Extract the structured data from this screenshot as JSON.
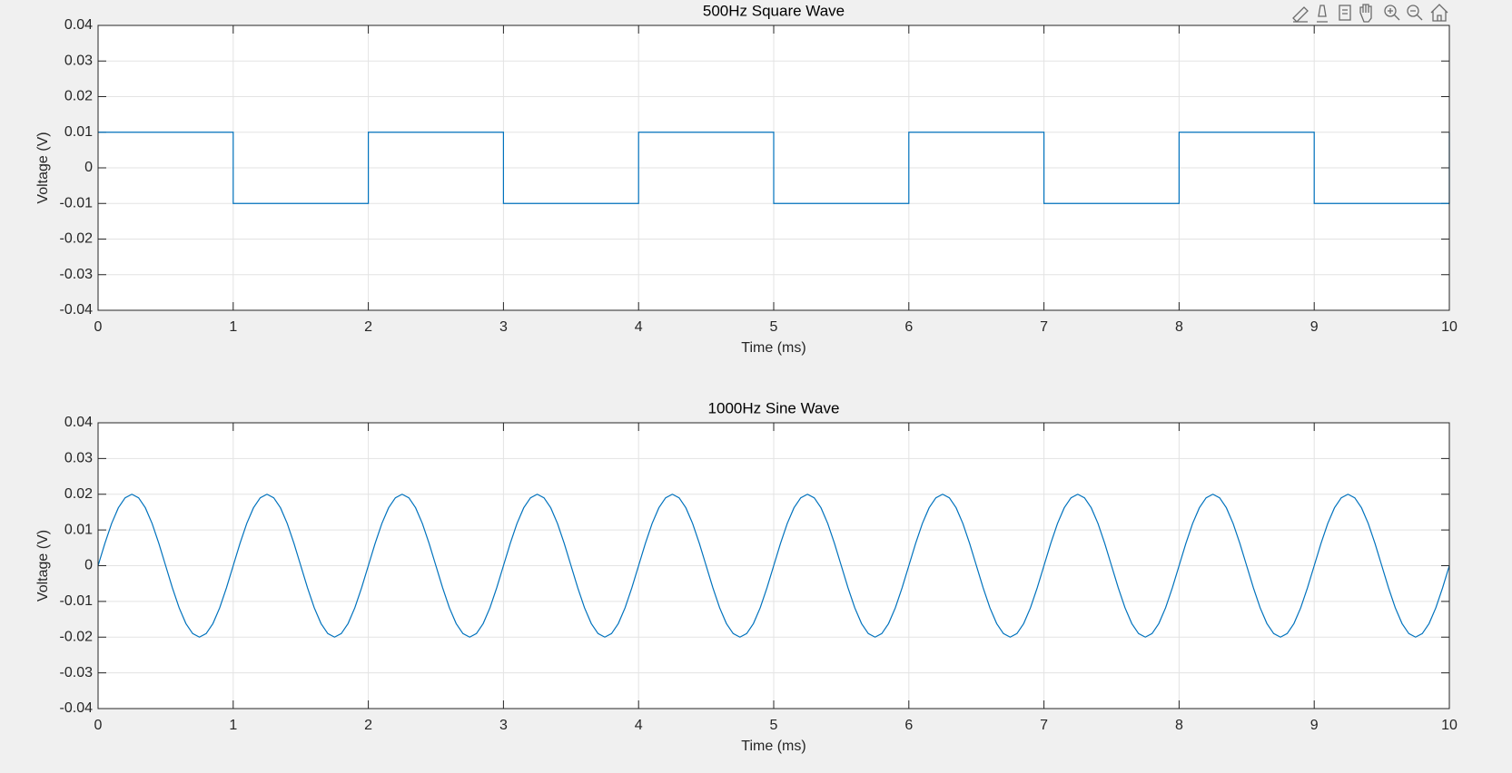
{
  "chart_data": [
    {
      "type": "line",
      "title": "500Hz Square Wave",
      "xlabel": "Time (ms)",
      "ylabel": "Voltage (V)",
      "x": [
        0,
        1,
        1,
        2,
        2,
        3,
        3,
        4,
        4,
        5,
        5,
        6,
        6,
        7,
        7,
        8,
        8,
        9,
        9,
        10,
        10
      ],
      "values": [
        0.01,
        0.01,
        -0.01,
        -0.01,
        0.01,
        0.01,
        -0.01,
        -0.01,
        0.01,
        0.01,
        -0.01,
        -0.01,
        0.01,
        0.01,
        -0.01,
        -0.01,
        0.01,
        0.01,
        -0.01,
        -0.01,
        0.01
      ],
      "color": "#0072bd",
      "xlim": [
        0,
        10
      ],
      "xticks": [
        0,
        1,
        2,
        3,
        4,
        5,
        6,
        7,
        8,
        9,
        10
      ],
      "ylim": [
        -0.04,
        0.04
      ],
      "yticks": [
        -0.04,
        -0.03,
        -0.02,
        -0.01,
        0,
        0.01,
        0.02,
        0.03,
        0.04
      ],
      "grid": true
    },
    {
      "type": "line",
      "title": "1000Hz Sine Wave",
      "xlabel": "Time (ms)",
      "ylabel": "Voltage (V)",
      "x": [
        0,
        0.05,
        0.1,
        0.15,
        0.2,
        0.25,
        0.3,
        0.35,
        0.4,
        0.45,
        0.5,
        0.55,
        0.6,
        0.65,
        0.7,
        0.75,
        0.8,
        0.85,
        0.9,
        0.95,
        1,
        1.05,
        1.1,
        1.15,
        1.2,
        1.25,
        1.3,
        1.35,
        1.4,
        1.45,
        1.5,
        1.55,
        1.6,
        1.65,
        1.7,
        1.75,
        1.8,
        1.85,
        1.9,
        1.95,
        2,
        2.05,
        2.1,
        2.15,
        2.2,
        2.25,
        2.3,
        2.35,
        2.4,
        2.45,
        2.5,
        2.55,
        2.6,
        2.65,
        2.7,
        2.75,
        2.8,
        2.85,
        2.9,
        2.95,
        3,
        3.05,
        3.1,
        3.15,
        3.2,
        3.25,
        3.3,
        3.35,
        3.4,
        3.45,
        3.5,
        3.55,
        3.6,
        3.65,
        3.7,
        3.75,
        3.8,
        3.85,
        3.9,
        3.95,
        4,
        4.05,
        4.1,
        4.15,
        4.2,
        4.25,
        4.3,
        4.35,
        4.4,
        4.45,
        4.5,
        4.55,
        4.6,
        4.65,
        4.7,
        4.75,
        4.8,
        4.85,
        4.9,
        4.95,
        5,
        5.05,
        5.1,
        5.15,
        5.2,
        5.25,
        5.3,
        5.35,
        5.4,
        5.45,
        5.5,
        5.55,
        5.6,
        5.65,
        5.7,
        5.75,
        5.8,
        5.85,
        5.9,
        5.95,
        6,
        6.05,
        6.1,
        6.15,
        6.2,
        6.25,
        6.3,
        6.35,
        6.4,
        6.45,
        6.5,
        6.55,
        6.6,
        6.65,
        6.7,
        6.75,
        6.8,
        6.85,
        6.9,
        6.95,
        7,
        7.05,
        7.1,
        7.15,
        7.2,
        7.25,
        7.3,
        7.35,
        7.4,
        7.45,
        7.5,
        7.55,
        7.6,
        7.65,
        7.7,
        7.75,
        7.8,
        7.85,
        7.9,
        7.95,
        8,
        8.05,
        8.1,
        8.15,
        8.2,
        8.25,
        8.3,
        8.35,
        8.4,
        8.45,
        8.5,
        8.55,
        8.6,
        8.65,
        8.7,
        8.75,
        8.8,
        8.85,
        8.9,
        8.95,
        9,
        9.05,
        9.1,
        9.15,
        9.2,
        9.25,
        9.3,
        9.35,
        9.4,
        9.45,
        9.5,
        9.55,
        9.6,
        9.65,
        9.7,
        9.75,
        9.8,
        9.85,
        9.9,
        9.95,
        10
      ],
      "values": [
        0,
        0.0062,
        0.0118,
        0.0162,
        0.019,
        0.02,
        0.019,
        0.0162,
        0.0118,
        0.0062,
        0,
        -0.0062,
        -0.0118,
        -0.0162,
        -0.019,
        -0.02,
        -0.019,
        -0.0162,
        -0.0118,
        -0.0062,
        0,
        0.0062,
        0.0118,
        0.0162,
        0.019,
        0.02,
        0.019,
        0.0162,
        0.0118,
        0.0062,
        0,
        -0.0062,
        -0.0118,
        -0.0162,
        -0.019,
        -0.02,
        -0.019,
        -0.0162,
        -0.0118,
        -0.0062,
        0,
        0.0062,
        0.0118,
        0.0162,
        0.019,
        0.02,
        0.019,
        0.0162,
        0.0118,
        0.0062,
        0,
        -0.0062,
        -0.0118,
        -0.0162,
        -0.019,
        -0.02,
        -0.019,
        -0.0162,
        -0.0118,
        -0.0062,
        0,
        0.0062,
        0.0118,
        0.0162,
        0.019,
        0.02,
        0.019,
        0.0162,
        0.0118,
        0.0062,
        0,
        -0.0062,
        -0.0118,
        -0.0162,
        -0.019,
        -0.02,
        -0.019,
        -0.0162,
        -0.0118,
        -0.0062,
        0,
        0.0062,
        0.0118,
        0.0162,
        0.019,
        0.02,
        0.019,
        0.0162,
        0.0118,
        0.0062,
        0,
        -0.0062,
        -0.0118,
        -0.0162,
        -0.019,
        -0.02,
        -0.019,
        -0.0162,
        -0.0118,
        -0.0062,
        0,
        0.0062,
        0.0118,
        0.0162,
        0.019,
        0.02,
        0.019,
        0.0162,
        0.0118,
        0.0062,
        0,
        -0.0062,
        -0.0118,
        -0.0162,
        -0.019,
        -0.02,
        -0.019,
        -0.0162,
        -0.0118,
        -0.0062,
        0,
        0.0062,
        0.0118,
        0.0162,
        0.019,
        0.02,
        0.019,
        0.0162,
        0.0118,
        0.0062,
        0,
        -0.0062,
        -0.0118,
        -0.0162,
        -0.019,
        -0.02,
        -0.019,
        -0.0162,
        -0.0118,
        -0.0062,
        0,
        0.0062,
        0.0118,
        0.0162,
        0.019,
        0.02,
        0.019,
        0.0162,
        0.0118,
        0.0062,
        0,
        -0.0062,
        -0.0118,
        -0.0162,
        -0.019,
        -0.02,
        -0.019,
        -0.0162,
        -0.0118,
        -0.0062,
        0,
        0.0062,
        0.0118,
        0.0162,
        0.019,
        0.02,
        0.019,
        0.0162,
        0.0118,
        0.0062,
        0,
        -0.0062,
        -0.0118,
        -0.0162,
        -0.019,
        -0.02,
        -0.019,
        -0.0162,
        -0.0118,
        -0.0062,
        0,
        0.0062,
        0.0118,
        0.0162,
        0.019,
        0.02,
        0.019,
        0.0162,
        0.0118,
        0.0062,
        0,
        -0.0062,
        -0.0118,
        -0.0162,
        -0.019,
        -0.02,
        -0.019,
        -0.0162,
        -0.0118,
        -0.0062,
        0
      ],
      "color": "#0072bd",
      "xlim": [
        0,
        10
      ],
      "xticks": [
        0,
        1,
        2,
        3,
        4,
        5,
        6,
        7,
        8,
        9,
        10
      ],
      "ylim": [
        -0.04,
        0.04
      ],
      "yticks": [
        -0.04,
        -0.03,
        -0.02,
        -0.01,
        0,
        0.01,
        0.02,
        0.03,
        0.04
      ],
      "grid": true
    }
  ]
}
